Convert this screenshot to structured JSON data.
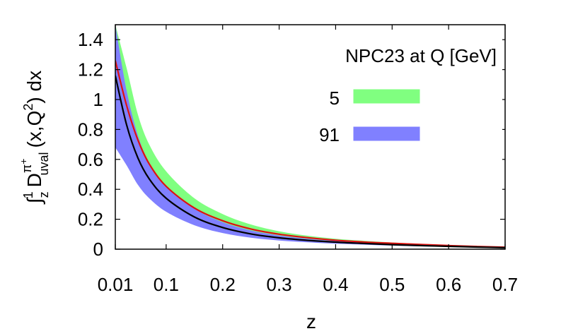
{
  "chart_data": {
    "type": "area",
    "title": "",
    "xlabel": "z",
    "ylabel": {
      "integral": "∫",
      "lower": "z",
      "upper": "1",
      "d": "D",
      "superscript": "π",
      "superscript_sign": "+",
      "subscript": "uval",
      "args": "(x,Q",
      "args_sup": "2",
      "args_end": ") dx"
    },
    "xlim": [
      0.01,
      0.7
    ],
    "ylim": [
      0,
      1.5
    ],
    "x_ticks": [
      0.01,
      0.1,
      0.2,
      0.3,
      0.4,
      0.5,
      0.6,
      0.7
    ],
    "x_tick_labels": [
      "0.01",
      "0.1",
      "0.2",
      "0.3",
      "0.4",
      "0.5",
      "0.6",
      "0.7"
    ],
    "y_ticks": [
      0,
      0.2,
      0.4,
      0.6,
      0.8,
      1,
      1.2,
      1.4
    ],
    "y_tick_labels": [
      "0",
      "0.2",
      "0.4",
      "0.6",
      "0.8",
      "1",
      "1.2",
      "1.4"
    ],
    "grid": false,
    "legend": {
      "title": "NPC23 at Q [GeV]",
      "placement": "top-right"
    },
    "series": [
      {
        "name": "5",
        "band_color": "#80ff80",
        "line_color": "#e01010",
        "x": [
          0.01,
          0.03,
          0.05,
          0.07,
          0.1,
          0.15,
          0.2,
          0.25,
          0.3,
          0.35,
          0.4,
          0.45,
          0.5,
          0.55,
          0.6,
          0.65,
          0.7
        ],
        "upper": [
          1.5,
          1.21,
          0.9,
          0.7,
          0.52,
          0.34,
          0.235,
          0.165,
          0.12,
          0.09,
          0.07,
          0.056,
          0.045,
          0.036,
          0.028,
          0.022,
          0.016
        ],
        "central": [
          1.26,
          0.96,
          0.73,
          0.57,
          0.42,
          0.275,
          0.19,
          0.135,
          0.1,
          0.077,
          0.06,
          0.048,
          0.039,
          0.031,
          0.024,
          0.018,
          0.013
        ],
        "lower": [
          0.96,
          0.7,
          0.54,
          0.43,
          0.32,
          0.21,
          0.145,
          0.105,
          0.08,
          0.062,
          0.05,
          0.04,
          0.032,
          0.026,
          0.02,
          0.015,
          0.011
        ]
      },
      {
        "name": "91",
        "band_color": "#8080ff",
        "line_color": "#000000",
        "x": [
          0.01,
          0.03,
          0.05,
          0.07,
          0.1,
          0.15,
          0.2,
          0.25,
          0.3,
          0.35,
          0.4,
          0.45,
          0.5,
          0.55,
          0.6,
          0.65,
          0.7
        ],
        "upper": [
          1.5,
          1.06,
          0.76,
          0.58,
          0.42,
          0.27,
          0.18,
          0.125,
          0.092,
          0.07,
          0.055,
          0.044,
          0.035,
          0.028,
          0.022,
          0.017,
          0.012
        ],
        "central": [
          1.16,
          0.83,
          0.61,
          0.47,
          0.34,
          0.215,
          0.145,
          0.102,
          0.076,
          0.059,
          0.047,
          0.038,
          0.03,
          0.024,
          0.019,
          0.014,
          0.01
        ],
        "lower": [
          0.68,
          0.56,
          0.43,
          0.34,
          0.25,
          0.16,
          0.108,
          0.077,
          0.058,
          0.046,
          0.037,
          0.03,
          0.024,
          0.019,
          0.015,
          0.011,
          0.008
        ]
      }
    ]
  }
}
